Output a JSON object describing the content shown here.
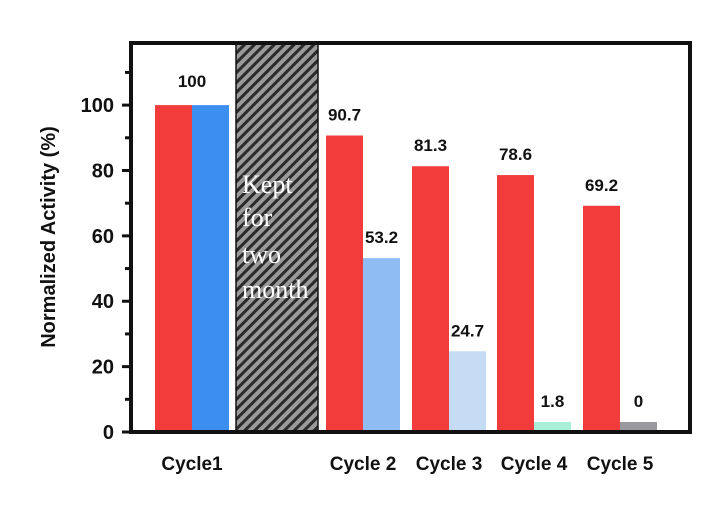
{
  "chart_data": {
    "type": "bar",
    "title": "",
    "xlabel": "",
    "ylabel": "Normalized Activity (%)",
    "ylim": [
      0,
      119
    ],
    "yticks": [
      0,
      20,
      40,
      60,
      80,
      100
    ],
    "grid": false,
    "legend": "none",
    "categories": [
      "Cycle1",
      "Cycle 2",
      "Cycle 3",
      "Cycle 4",
      "Cycle 5"
    ],
    "series": [
      {
        "values": [
          100,
          90.7,
          81.3,
          78.6,
          69.2
        ],
        "colors": [
          "#f23c3c",
          "#f23c3c",
          "#f23c3c",
          "#f23c3c",
          "#f23c3c"
        ]
      },
      {
        "values": [
          100,
          53.2,
          24.7,
          1.8,
          0
        ],
        "colors": [
          "#3d8fef",
          "#8fbdf3",
          "#c6dcf5",
          "#a8f0d8",
          "#9a9a9e"
        ]
      }
    ],
    "data_labels": [
      {
        "category": "Cycle1",
        "text": "100"
      },
      {
        "category": "Cycle 2",
        "series": 0,
        "text": "90.7"
      },
      {
        "category": "Cycle 2",
        "series": 1,
        "text": "53.2"
      },
      {
        "category": "Cycle 3",
        "series": 0,
        "text": "81.3"
      },
      {
        "category": "Cycle 3",
        "series": 1,
        "text": "24.7"
      },
      {
        "category": "Cycle 4",
        "series": 0,
        "text": "78.6"
      },
      {
        "category": "Cycle 4",
        "series": 1,
        "text": "1.8"
      },
      {
        "category": "Cycle 5",
        "series": 0,
        "text": "69.2"
      },
      {
        "category": "Cycle 5",
        "series": 1,
        "text": "0"
      }
    ],
    "annotation": {
      "lines": [
        "Kept",
        "for",
        "two",
        "month"
      ],
      "fill": "hatched gray"
    }
  }
}
